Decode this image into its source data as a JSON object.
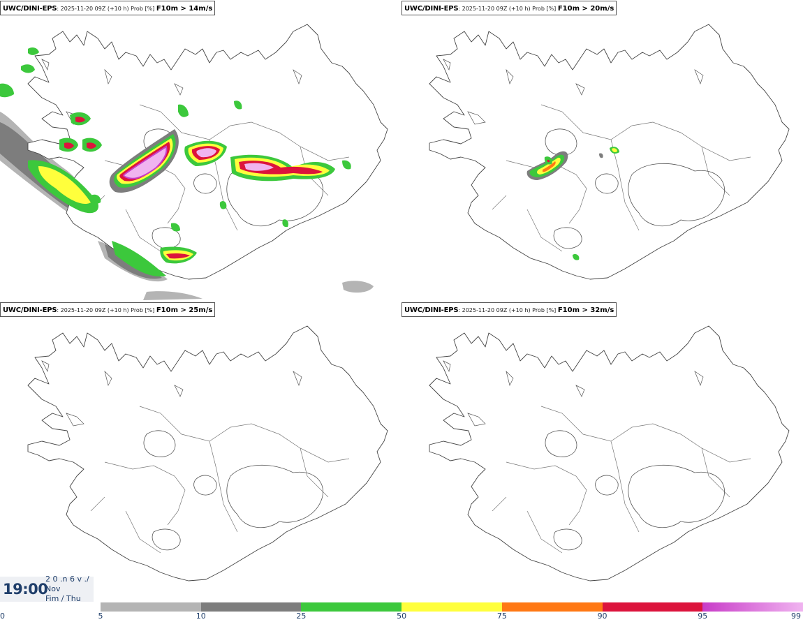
{
  "panels": [
    {
      "source": "UWC/DINI-EPS",
      "meta": ": 2025-11-20 09Z (+10 h) Prob [%] ",
      "variable": "F10m > 14m/s"
    },
    {
      "source": "UWC/DINI-EPS",
      "meta": ": 2025-11-20 09Z (+10 h) Prob [%] ",
      "variable": "F10m > 20m/s"
    },
    {
      "source": "UWC/DINI-EPS",
      "meta": ": 2025-11-20 09Z (+10 h) Prob [%] ",
      "variable": "F10m > 25m/s"
    },
    {
      "source": "UWC/DINI-EPS",
      "meta": ": 2025-11-20 09Z (+10 h) Prob [%] ",
      "variable": "F10m > 32m/s"
    }
  ],
  "time": {
    "main": "19:00",
    "line1": "2 0 .n 6 v ./",
    "line2": "Nov",
    "line3": "Fim / Thu"
  },
  "legend": {
    "ticks": [
      "0",
      "5",
      "10",
      "25",
      "50",
      "75",
      "90",
      "95",
      "99"
    ],
    "colors": [
      "#b4b4b4",
      "#7d7d7d",
      "#3cc83c",
      "#ffff3c",
      "#ff7814",
      "#dc143c",
      "#c83cc8",
      "#f0b4f0"
    ]
  },
  "prob_colors": {
    "p5": "#b4b4b4",
    "p10": "#7d7d7d",
    "p25": "#3cc83c",
    "p50": "#ffff3c",
    "p75": "#ff7814",
    "p90": "#dc143c",
    "p95": "#c83cc8",
    "p99": "#f0b4f0"
  }
}
